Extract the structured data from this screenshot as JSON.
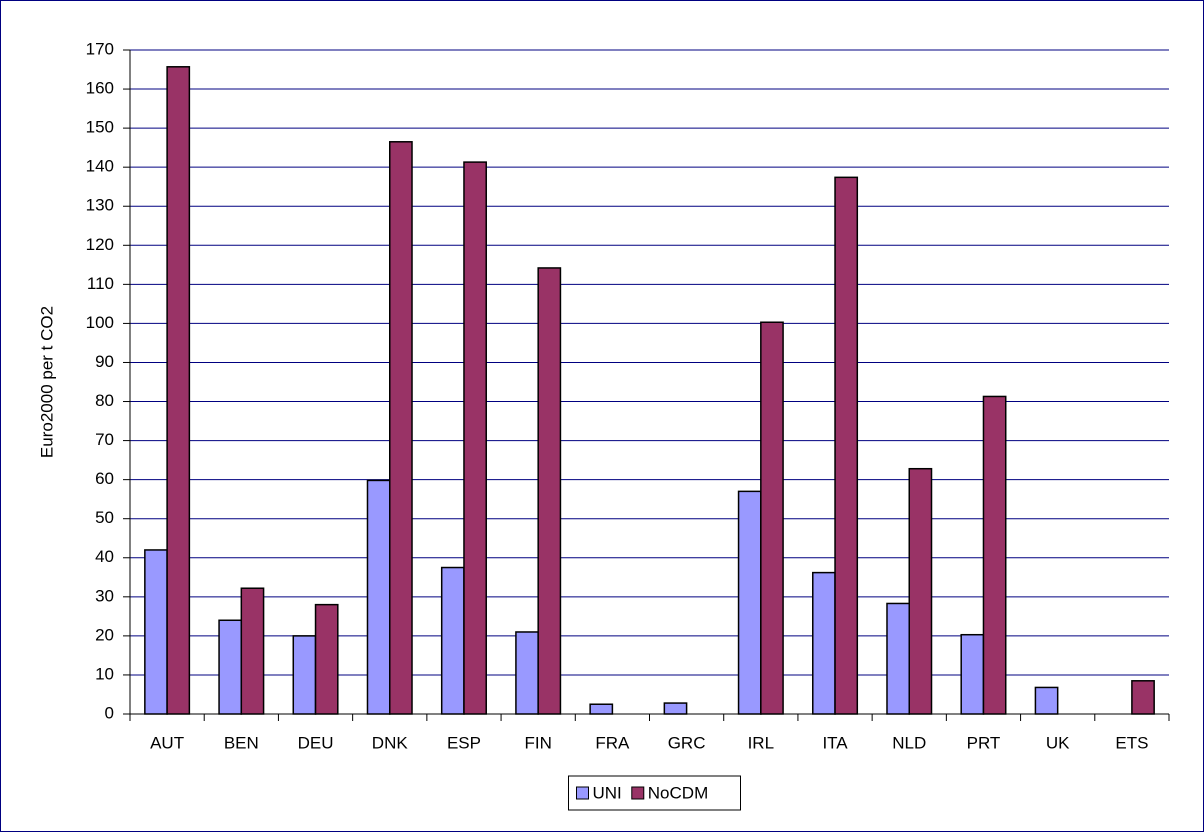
{
  "chart_data": {
    "type": "bar",
    "y_label": "Euro2000 per t CO2",
    "categories": [
      "AUT",
      "BEN",
      "DEU",
      "DNK",
      "ESP",
      "FIN",
      "FRA",
      "GRC",
      "IRL",
      "ITA",
      "NLD",
      "PRT",
      "UK",
      "ETS"
    ],
    "series": [
      {
        "name": "UNI",
        "color": "#9999ff",
        "values": [
          42,
          24,
          20,
          59.8,
          37.5,
          21,
          2.5,
          2.8,
          57,
          36.2,
          28.3,
          20.3,
          6.8,
          0
        ]
      },
      {
        "name": "NoCDM",
        "color": "#993366",
        "values": [
          165.7,
          32.2,
          28,
          146.5,
          141.3,
          114.2,
          0,
          0,
          100.3,
          137.4,
          62.8,
          81.3,
          0,
          8.5
        ]
      }
    ],
    "ylim": [
      0,
      170
    ],
    "yticks": [
      0,
      10,
      20,
      30,
      40,
      50,
      60,
      70,
      80,
      90,
      100,
      110,
      120,
      130,
      140,
      150,
      160,
      170
    ],
    "grid": true,
    "legend": "bottom"
  }
}
